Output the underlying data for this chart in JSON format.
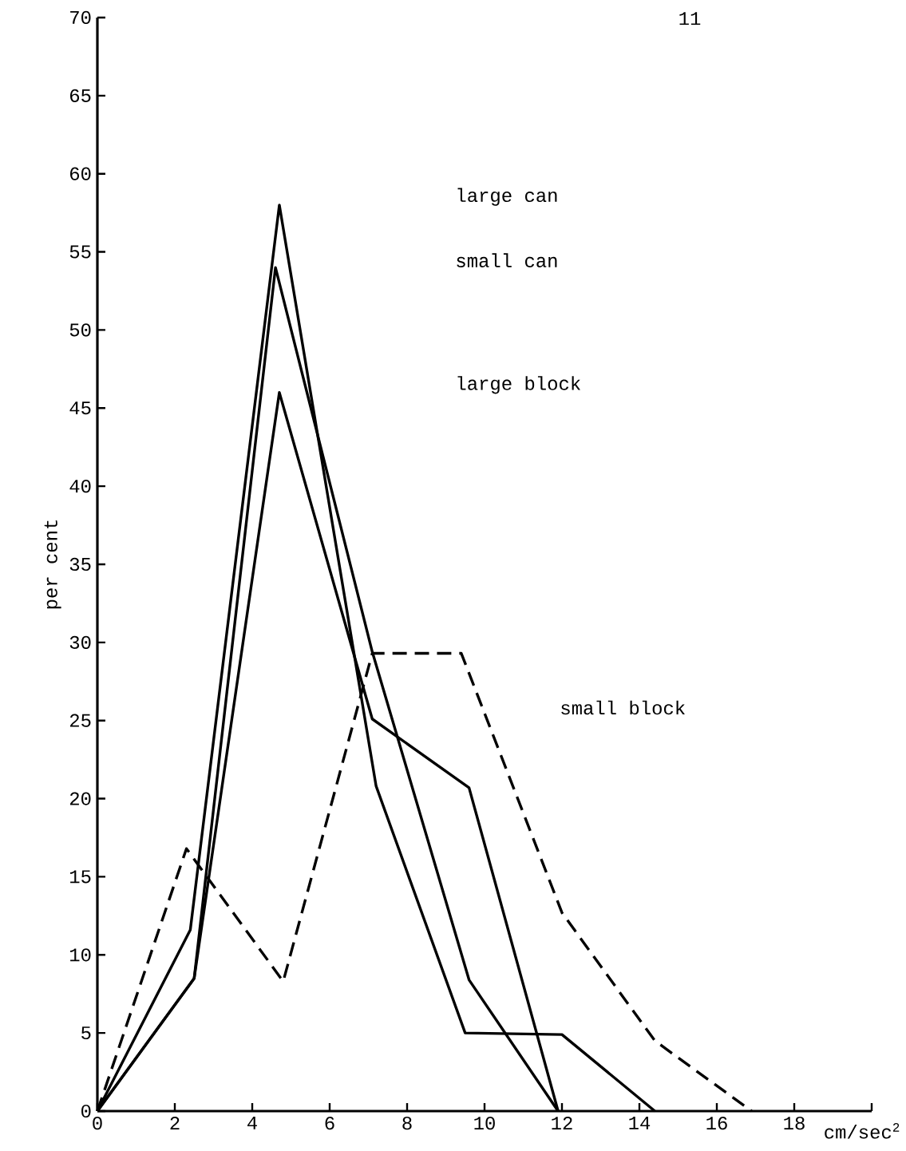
{
  "chart_data": {
    "type": "line",
    "xlabel": "cm/sec$^{2}$",
    "ylabel": "per cent",
    "annotations": [
      "11",
      "large can",
      "small can",
      "large block",
      "small block"
    ],
    "xlim": [
      0,
      20
    ],
    "ylim": [
      0,
      70
    ],
    "xticks": [
      0,
      2,
      4,
      6,
      8,
      10,
      12,
      14,
      16,
      18,
      {
        "value": 20,
        "label": null
      }
    ],
    "yticks": [
      0,
      5,
      10,
      15,
      20,
      25,
      30,
      35,
      40,
      45,
      50,
      55,
      60,
      65,
      70
    ],
    "grid": false,
    "legend": false,
    "marker": "none",
    "series": [
      {
        "color": "#000000",
        "line_style": "solid",
        "x": [
          0,
          2.4,
          4.7,
          7.2,
          9.5,
          12.0,
          14.4
        ],
        "values": [
          0,
          11.6,
          58,
          20.8,
          5,
          4.9,
          0
        ]
      },
      {
        "color": "#000000",
        "line_style": "solid",
        "x": [
          0,
          2.5,
          4.6,
          7.1,
          9.6,
          11.9
        ],
        "values": [
          0,
          8.5,
          54,
          29.4,
          8.4,
          0
        ]
      },
      {
        "color": "#000000",
        "line_style": "solid",
        "x": [
          0,
          2.5,
          4.7,
          7.1,
          9.6,
          11.9
        ],
        "values": [
          0,
          8.5,
          46,
          25.1,
          20.7,
          0
        ]
      },
      {
        "color": "#000000",
        "line_style": "dashed",
        "x": [
          0,
          2.3,
          4.8,
          7.1,
          9.4,
          12.0,
          14.4,
          16.9
        ],
        "values": [
          0,
          16.8,
          8.3,
          29.3,
          29.3,
          12.7,
          4.5,
          0
        ]
      }
    ]
  }
}
